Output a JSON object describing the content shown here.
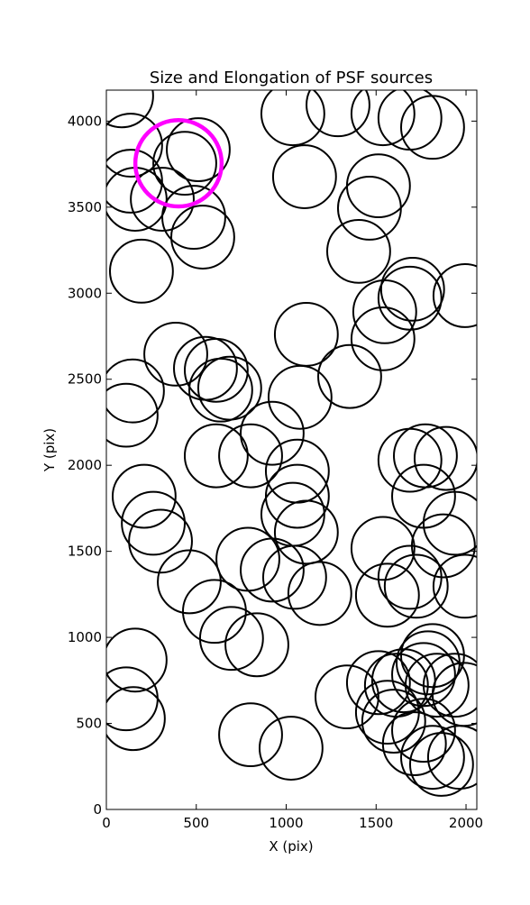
{
  "chart_data": {
    "type": "scatter",
    "title": "Size and Elongation of PSF sources",
    "x_label": "X (pix)",
    "y_label": "Y (pix)",
    "xlim": [
      0,
      2060
    ],
    "ylim": [
      0,
      4180
    ],
    "xticks": [
      0,
      500,
      1000,
      1500,
      2000
    ],
    "yticks": [
      0,
      500,
      1000,
      1500,
      2000,
      2500,
      3000,
      3500,
      4000
    ],
    "sources": {
      "color": "#000000",
      "x": [
        85,
        135,
        160,
        135,
        311,
        436,
        511,
        486,
        536,
        195,
        1037,
        1288,
        1538,
        1688,
        1814,
        1102,
        1463,
        1513,
        1403,
        1703,
        1688,
        1548,
        1538,
        1994,
        1112,
        1353,
        386,
        145,
        110,
        551,
        611,
        636,
        686,
        611,
        802,
        922,
        1077,
        1062,
        1062,
        210,
        261,
        301,
        461,
        601,
        696,
        837,
        787,
        922,
        1047,
        1187,
        1037,
        1112,
        1688,
        1764,
        1774,
        1889,
        1538,
        1563,
        1688,
        1723,
        1874,
        1939,
        1994,
        160,
        110,
        150,
        802,
        1027,
        1338,
        1513,
        1563,
        1598,
        1613,
        1653,
        1764,
        1789,
        1814,
        1839,
        1939,
        1989,
        1713,
        1764,
        1814,
        1864,
        1964
      ],
      "y": [
        4147,
        3860,
        3546,
        3651,
        3546,
        3755,
        3834,
        3441,
        3326,
        3128,
        4043,
        4095,
        4043,
        4017,
        3964,
        3677,
        3494,
        3624,
        3243,
        3023,
        2971,
        2892,
        2735,
        2986,
        2761,
        2516,
        2646,
        2432,
        2291,
        2563,
        2552,
        2437,
        2448,
        2055,
        2055,
        2186,
        2395,
        1966,
        1820,
        1820,
        1663,
        1559,
        1323,
        1151,
        994,
        957,
        1454,
        1391,
        1349,
        1255,
        1715,
        1611,
        2029,
        1820,
        2055,
        2040,
        1517,
        1245,
        1349,
        1297,
        1532,
        1663,
        1297,
        868,
        643,
        528,
        434,
        356,
        654,
        737,
        565,
        513,
        722,
        748,
        784,
        852,
        894,
        722,
        722,
        669,
        382,
        460,
        303,
        262,
        303
      ],
      "r": [
        175,
        175,
        175,
        175,
        175,
        175,
        175,
        175,
        175,
        175,
        175,
        175,
        175,
        175,
        175,
        175,
        175,
        175,
        175,
        175,
        175,
        175,
        175,
        175,
        175,
        175,
        175,
        175,
        175,
        175,
        175,
        175,
        175,
        175,
        175,
        175,
        175,
        175,
        175,
        175,
        175,
        175,
        175,
        175,
        175,
        175,
        175,
        175,
        175,
        175,
        175,
        175,
        175,
        175,
        175,
        175,
        175,
        175,
        175,
        175,
        175,
        175,
        175,
        175,
        175,
        175,
        175,
        175,
        175,
        175,
        175,
        175,
        175,
        175,
        175,
        175,
        175,
        175,
        175,
        175,
        175,
        175,
        175,
        175,
        175
      ]
    },
    "highlight": {
      "color": "#ff00ff",
      "x": [
        401
      ],
      "y": [
        3755
      ],
      "r": [
        240
      ]
    }
  }
}
